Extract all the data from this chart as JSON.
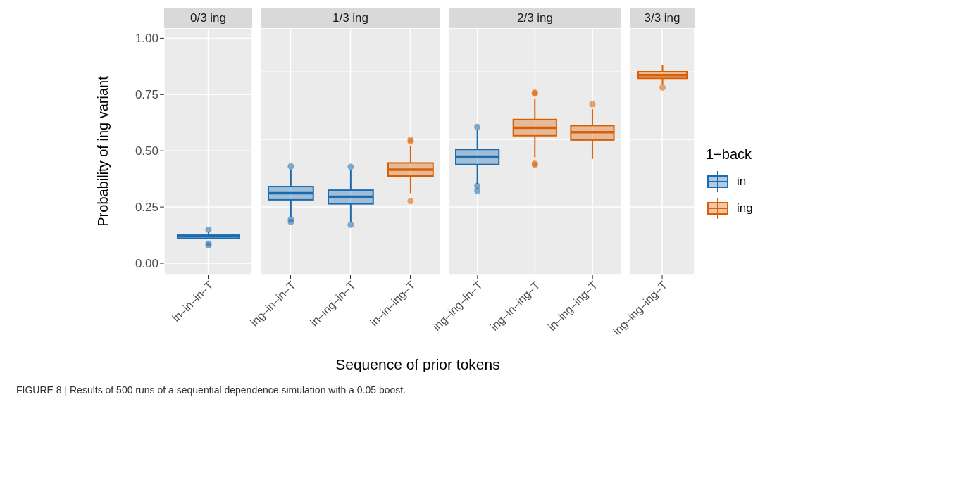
{
  "chart_data": [
    {
      "type": "box",
      "title": "0/3 ing",
      "categories": [
        "in–in–in–T"
      ],
      "ylabel": "Probability of ing variant",
      "xlabel": "Sequence of prior tokens",
      "ylim": [
        -0.05,
        1.045
      ],
      "yticks": [
        {
          "value": 0,
          "label": "0.00"
        },
        {
          "value": 0.25,
          "label": "0.25"
        },
        {
          "value": 0.5,
          "label": "0.50"
        },
        {
          "value": 0.75,
          "label": "0.75"
        },
        {
          "value": 1,
          "label": "1.00"
        }
      ],
      "grid": true,
      "annotations": [
        "FIGURE 8 | Results of 500 runs of a sequential dependence simulation with a 0.05 boost."
      ],
      "series": [
        {
          "color": "#1b6bb0",
          "boxes": [
            {
              "low": 0.11,
              "q1": 0.11,
              "median": 0.12,
              "q3": 0.125,
              "high": 0.137,
              "outliers": [
                0.149,
                0.088,
                0.079
              ]
            }
          ]
        }
      ]
    },
    {
      "type": "box",
      "title": "1/3 ing",
      "categories": [
        "ing–in–in–T",
        "in–ing–in–T",
        "in–in–ing–T"
      ],
      "ylim": [
        -0.05,
        1.045
      ],
      "tick_labels": "x",
      "grid": true,
      "series": [
        {
          "color": "#1b6bb0",
          "boxes": [
            {
              "low": 0.204,
              "q1": 0.282,
              "median": 0.311,
              "q3": 0.341,
              "high": 0.418,
              "outliers": [
                0.431,
                0.195,
                0.184
              ]
            },
            {
              "low": 0.182,
              "q1": 0.264,
              "median": 0.296,
              "q3": 0.325,
              "high": 0.414,
              "outliers": [
                0.429,
                0.171
              ]
            },
            null
          ]
        },
        {
          "color": "#d95f02",
          "boxes": [
            null,
            null,
            {
              "low": 0.311,
              "q1": 0.388,
              "median": 0.416,
              "q3": 0.446,
              "high": 0.523,
              "outliers": [
                0.549,
                0.541,
                0.276
              ]
            }
          ]
        }
      ]
    },
    {
      "type": "box",
      "title": "2/3 ing",
      "categories": [
        "ing–ing–in–T",
        "ing–in–ing–T",
        "in–ing–ing–T"
      ],
      "ylim": [
        -0.05,
        1.045
      ],
      "tick_labels": "x",
      "grid": true,
      "legend": "right",
      "legend_title": "1−back",
      "series": [
        {
          "name": "in",
          "color": "#1b6bb0",
          "boxes": [
            {
              "low": 0.353,
              "q1": 0.439,
              "median": 0.474,
              "q3": 0.506,
              "high": 0.593,
              "outliers": [
                0.606,
                0.344,
                0.322
              ]
            },
            null,
            null
          ]
        },
        {
          "name": "ing",
          "color": "#d95f02",
          "boxes": [
            null,
            {
              "low": 0.471,
              "q1": 0.567,
              "median": 0.602,
              "q3": 0.639,
              "high": 0.733,
              "outliers": [
                0.759,
                0.754,
                0.443,
                0.437
              ]
            },
            {
              "low": 0.464,
              "q1": 0.548,
              "median": 0.583,
              "q3": 0.612,
              "high": 0.685,
              "outliers": [
                0.707
              ]
            }
          ]
        }
      ]
    },
    {
      "type": "box",
      "title": "3/3 ing",
      "categories": [
        "ing–ing–ing–T"
      ],
      "ylim": [
        -0.05,
        1.045
      ],
      "tick_labels": "x",
      "grid": true,
      "series": [
        {
          "color": "#d95f02",
          "boxes": [
            {
              "low": 0.793,
              "q1": 0.822,
              "median": 0.836,
              "q3": 0.851,
              "high": 0.882,
              "outliers": [
                0.781
              ]
            }
          ]
        }
      ]
    }
  ]
}
